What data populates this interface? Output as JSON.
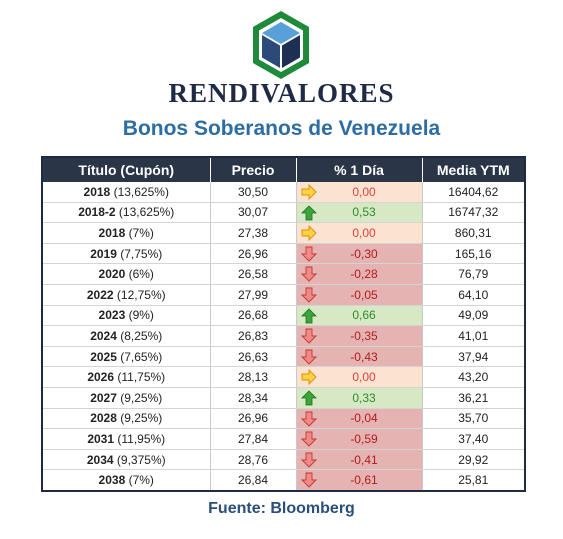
{
  "header": {
    "brand": "RENDIVALORES",
    "subtitle": "Bonos Soberanos de Venezuela",
    "logo_icon": "cube-hexagon-logo",
    "logo_colors": {
      "outer": "#1f8a3a",
      "top": "#5aa0d8",
      "left": "#2b4a7a",
      "right": "#1d2f52"
    }
  },
  "table": {
    "columns": [
      "Título (Cupón)",
      "Precio",
      "% 1 Día",
      "Media YTM"
    ],
    "rows": [
      {
        "year": "2018",
        "coupon": "(13,625%)",
        "price": "30,50",
        "change": "0,00",
        "direction": "flat",
        "ytm": "16404,62"
      },
      {
        "year": "2018-2",
        "coupon": "(13,625%)",
        "price": "30,07",
        "change": "0,53",
        "direction": "up",
        "ytm": "16747,32"
      },
      {
        "year": "2018",
        "coupon": "(7%)",
        "price": "27,38",
        "change": "0,00",
        "direction": "flat",
        "ytm": "860,31"
      },
      {
        "year": "2019",
        "coupon": "(7,75%)",
        "price": "26,96",
        "change": "-0,30",
        "direction": "down",
        "ytm": "165,16"
      },
      {
        "year": "2020",
        "coupon": "(6%)",
        "price": "26,58",
        "change": "-0,28",
        "direction": "down",
        "ytm": "76,79"
      },
      {
        "year": "2022",
        "coupon": "(12,75%)",
        "price": "27,99",
        "change": "-0,05",
        "direction": "down",
        "ytm": "64,10"
      },
      {
        "year": "2023",
        "coupon": "(9%)",
        "price": "26,68",
        "change": "0,66",
        "direction": "up",
        "ytm": "49,09"
      },
      {
        "year": "2024",
        "coupon": "(8,25%)",
        "price": "26,83",
        "change": "-0,35",
        "direction": "down",
        "ytm": "41,01"
      },
      {
        "year": "2025",
        "coupon": "(7,65%)",
        "price": "26,63",
        "change": "-0,43",
        "direction": "down",
        "ytm": "37,94"
      },
      {
        "year": "2026",
        "coupon": "(11,75%)",
        "price": "28,13",
        "change": "0,00",
        "direction": "flat",
        "ytm": "43,20"
      },
      {
        "year": "2027",
        "coupon": "(9,25%)",
        "price": "28,34",
        "change": "0,33",
        "direction": "up",
        "ytm": "36,21"
      },
      {
        "year": "2028",
        "coupon": "(9,25%)",
        "price": "26,96",
        "change": "-0,04",
        "direction": "down",
        "ytm": "35,70"
      },
      {
        "year": "2031",
        "coupon": "(11,95%)",
        "price": "27,84",
        "change": "-0,59",
        "direction": "down",
        "ytm": "37,40"
      },
      {
        "year": "2034",
        "coupon": "(9,375%)",
        "price": "28,76",
        "change": "-0,41",
        "direction": "down",
        "ytm": "29,92"
      },
      {
        "year": "2038",
        "coupon": "(7%)",
        "price": "26,84",
        "change": "-0,61",
        "direction": "down",
        "ytm": "25,81"
      }
    ],
    "arrow_icons": {
      "up": "arrow-up-icon",
      "down": "arrow-down-icon",
      "flat": "arrow-right-icon"
    },
    "colors": {
      "header_bg": "#2a3547",
      "up_bg": "#d7e8c4",
      "down_bg": "#e6b3b3",
      "flat_bg": "#fbe3d2"
    }
  },
  "footer": {
    "source": "Fuente: Bloomberg"
  }
}
